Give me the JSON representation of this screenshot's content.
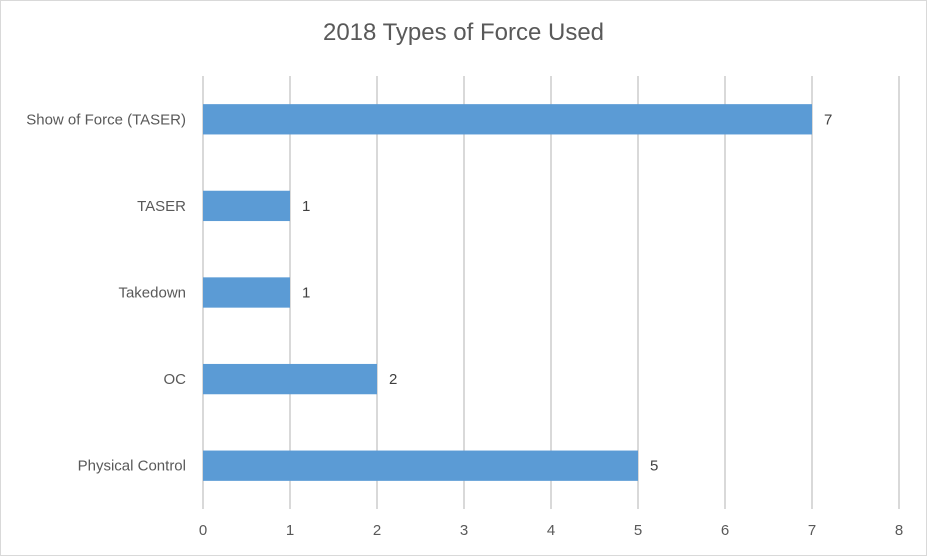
{
  "chart_data": {
    "type": "bar",
    "orientation": "horizontal",
    "title": "2018 Types of Force Used",
    "categories": [
      "Show of Force (TASER)",
      "TASER",
      "Takedown",
      "OC",
      "Physical Control"
    ],
    "values": [
      7,
      1,
      1,
      2,
      5
    ],
    "data_labels": [
      "7",
      "1",
      "1",
      "2",
      "5"
    ],
    "xlim": [
      0,
      8
    ],
    "x_ticks": [
      "0",
      "1",
      "2",
      "3",
      "4",
      "5",
      "6",
      "7",
      "8"
    ],
    "xlabel": "",
    "ylabel": "",
    "grid": "vertical",
    "legend": "none",
    "bar_color": "#5b9bd5"
  }
}
